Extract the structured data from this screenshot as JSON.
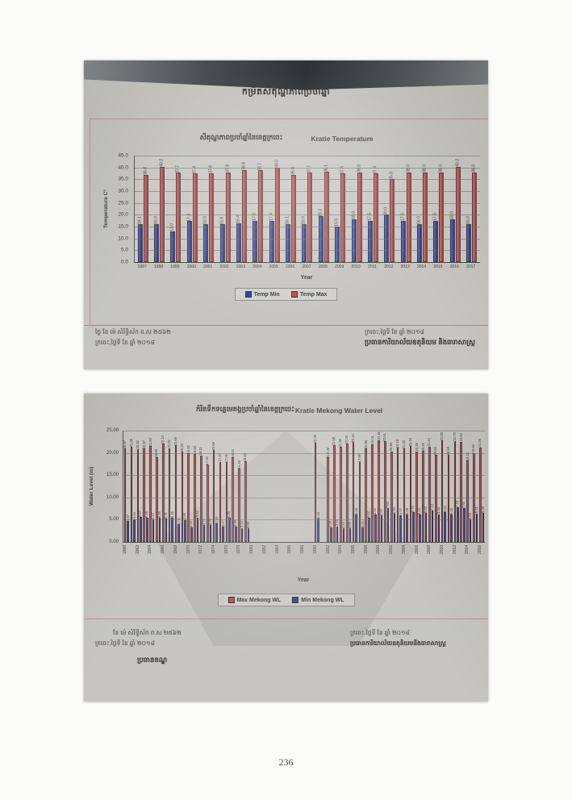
{
  "page": {
    "number": "236"
  },
  "photo_top": {
    "heading": "កម្រិតសីតុណ្ហភាពប្រចាំឆ្នាំ",
    "footer": {
      "left_line1": "ថ្ងៃ      ខែ      ម៉េ សំរិទ្ធិស័ក ព.ស ២៥៦២",
      "left_line2": "ក្រចេះ,ថ្ងៃទី      ខែ      ឆ្នាំ ២០១៨",
      "right_line1": "ក្រចេះ,ថ្ងៃទី      ខែ      ឆ្នាំ ២០១៨",
      "right_line2": "ប្រធានការិយាល័យឧតុនិយម និងធារាសាស្ត្រ"
    }
  },
  "photo_bottom": {
    "footer": {
      "left_line1": "ខែ      ម៉េ សំរិទ្ធិស័ក ព.ស ២៥៦២",
      "left_line2": "ក្រចេះ,ថ្ងៃទី      ខែ      ឆ្នាំ ២០១៨",
      "left_line3": "ប្រធានខណ្ឌ",
      "right_line1": "ក្រចេះ.ថ្ងៃទី      ខែ      ឆ្នាំ ២០១៨",
      "right_line2": "ប្រធានការិយាល័យឧតុនិយមនិងធារាសាស្ត្រ"
    }
  },
  "chart_data": [
    {
      "type": "bar",
      "title": "សីតុណ្ហភាពប្រចាំឆ្នាំនៃខេត្តក្រចេះ",
      "title_en": "Kratie Temperature",
      "xlabel": "Year",
      "ylabel": "Temperature C°",
      "ylim": [
        0,
        45
      ],
      "ytick_labels": [
        "45.0",
        "40.0",
        "35.0",
        "30.0",
        "25.0",
        "20.0",
        "15.0",
        "10.0",
        "5.0",
        "0.0"
      ],
      "grid": true,
      "legend_position": "bottom",
      "value_decimals": 1,
      "xtick_every": 1,
      "categories": [
        "1997",
        "1998",
        "1999",
        "2000",
        "2001",
        "2002",
        "2003",
        "2004",
        "2005",
        "2006",
        "2007",
        "2008",
        "2009",
        "2010",
        "2011",
        "2012",
        "2013",
        "2014",
        "2015",
        "2016",
        "2017"
      ],
      "series": [
        {
          "name": "Temp Min",
          "color": "#2d3e94",
          "values": [
            16.1,
            16.0,
            13.0,
            17.3,
            16.0,
            15.9,
            16.4,
            17.5,
            17.4,
            16.1,
            16.0,
            19.3,
            15.0,
            18.0,
            17.5,
            20.0,
            17.5,
            16.0,
            17.5,
            18.0,
            16.0
          ]
        },
        {
          "name": "Temp Max",
          "color": "#b54a47",
          "values": [
            36.8,
            40.2,
            37.7,
            37.4,
            37.6,
            37.9,
            38.8,
            38.7,
            40.0,
            36.8,
            37.7,
            38.1,
            37.4,
            38.0,
            37.4,
            35.0,
            38.0,
            38.0,
            38.0,
            40.2,
            38.0
          ]
        }
      ]
    },
    {
      "type": "bar",
      "title": "កំរិតទឹកទន្លេមេគង្គប្រចាំឆ្នាំនៃខេត្តក្រចេះ",
      "title_en": "Kratie Mekong Water Level",
      "xlabel": "Year",
      "ylabel": "Water Level (m)",
      "ylim": [
        0,
        25
      ],
      "ytick_labels": [
        "25.00",
        "20.00",
        "15.00",
        "10.00",
        "5.00",
        "0.00"
      ],
      "grid": true,
      "legend_position": "bottom",
      "value_decimals": 2,
      "xtick_every": 2,
      "categories": [
        "1960",
        "1961",
        "1962",
        "1963",
        "1964",
        "1965",
        "1966",
        "1967",
        "1968",
        "1969",
        "1970",
        "1971",
        "1972",
        "1973",
        "1974",
        "1975",
        "1976",
        "1977",
        "1978",
        "1979",
        "1980",
        "1981",
        "1982",
        "1983",
        "1984",
        "1985",
        "1986",
        "1987",
        "1988",
        "1989",
        "1990",
        "1991",
        "1992",
        "1993",
        "1994",
        "1995",
        "1996",
        "1997",
        "1998",
        "1999",
        "2000",
        "2001",
        "2002",
        "2003",
        "2004",
        "2005",
        "2006",
        "2007",
        "2008",
        "2009",
        "2010",
        "2011",
        "2012",
        "2013",
        "2014",
        "2015",
        "2016"
      ],
      "series": [
        {
          "name": "Max Mekong WL",
          "color": "#b54a47",
          "values": [
            20.97,
            21.38,
            20.92,
            20.97,
            21.5,
            18.99,
            22.1,
            21.04,
            21.69,
            20.25,
            19.92,
            19.69,
            19.41,
            17.32,
            20.59,
            17.97,
            17.86,
            19.02,
            16.48,
            18.03,
            null,
            null,
            null,
            null,
            null,
            null,
            null,
            null,
            null,
            null,
            22.25,
            null,
            19.28,
            21.68,
            21.36,
            22.02,
            22.4,
            17.89,
            20.96,
            22.01,
            22.91,
            22.61,
            20.36,
            21.19,
            21.02,
            21.49,
            20.35,
            20.45,
            21.44,
            19.56,
            22.8,
            19.53,
            22.7,
            22.5,
            18.24,
            19.94,
            21.26
          ]
        },
        {
          "name": "Min Mekong WL",
          "color": "#2d3e94",
          "values": [
            4.67,
            5.14,
            5.57,
            5.46,
            5.12,
            5.45,
            5.31,
            5.45,
            4.04,
            4.96,
            3.24,
            5.52,
            3.72,
            3.76,
            4.2,
            3.47,
            5.39,
            3.39,
            3.15,
            3.08,
            null,
            null,
            null,
            null,
            null,
            null,
            null,
            null,
            null,
            null,
            5.28,
            null,
            3.28,
            3.53,
            3.14,
            3.05,
            6.18,
            3.3,
            5.42,
            6.1,
            5.92,
            7.6,
            6.34,
            6.07,
            6.09,
            6.74,
            6.14,
            6.53,
            7.13,
            6.24,
            6.62,
            6.15,
            7.73,
            7.6,
            5.03,
            6.41,
            6.48
          ]
        }
      ]
    }
  ]
}
